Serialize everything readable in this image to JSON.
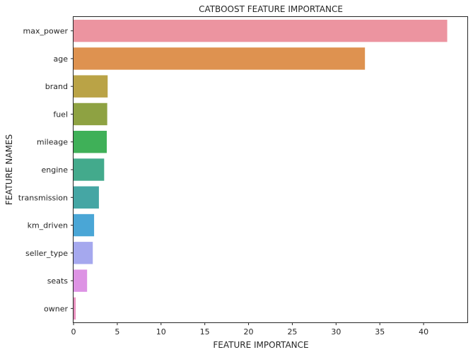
{
  "chart_data": {
    "type": "bar",
    "orientation": "horizontal",
    "title": "CATBOOST FEATURE IMPORTANCE",
    "xlabel": "FEATURE IMPORTANCE",
    "ylabel": "FEATURE NAMES",
    "categories": [
      "max_power",
      "age",
      "brand",
      "fuel",
      "mileage",
      "engine",
      "transmission",
      "km_driven",
      "seller_type",
      "seats",
      "owner"
    ],
    "values": [
      42.7,
      33.3,
      3.9,
      3.85,
      3.8,
      3.5,
      2.9,
      2.35,
      2.2,
      1.55,
      0.25
    ],
    "colors": [
      "#ec94a0",
      "#de9250",
      "#baa346",
      "#8ea242",
      "#3fb058",
      "#43aa8c",
      "#45a6a4",
      "#4aa6d6",
      "#a5a8ee",
      "#dd93e4",
      "#ea92c0"
    ],
    "xlim": [
      0,
      45
    ],
    "xticks": [
      0,
      5,
      10,
      15,
      20,
      25,
      30,
      35,
      40
    ],
    "grid": false
  }
}
